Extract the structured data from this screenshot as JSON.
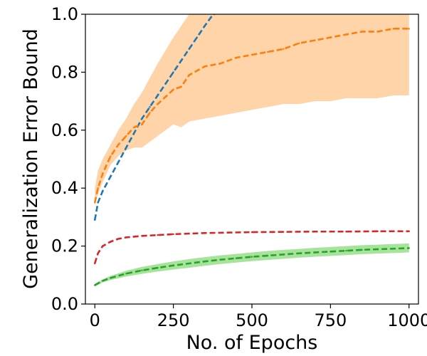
{
  "chart_data": {
    "type": "line",
    "title": "",
    "xlabel": "No. of Epochs",
    "ylabel": "Generalization Error Bound",
    "xlim": [
      -30,
      1030
    ],
    "ylim": [
      0,
      1.0
    ],
    "xticks": [
      "0",
      "250",
      "500",
      "750",
      "1000"
    ],
    "yticks": [
      "0.0",
      "0.2",
      "0.4",
      "0.6",
      "0.8",
      "1.0"
    ],
    "grid": false,
    "legend": "none",
    "series": [
      {
        "color": "#1f77b4",
        "style": "dashed",
        "x": [
          0,
          10,
          25,
          50,
          75,
          100,
          125,
          150,
          175,
          200,
          225,
          250,
          275,
          300,
          325,
          350,
          370,
          380
        ],
        "y": [
          0.29,
          0.35,
          0.39,
          0.44,
          0.49,
          0.54,
          0.59,
          0.64,
          0.68,
          0.72,
          0.76,
          0.8,
          0.84,
          0.88,
          0.92,
          0.96,
          0.99,
          1.0
        ]
      },
      {
        "color": "#ff7f0e",
        "style": "dashed",
        "band_color": "#ffcc99",
        "x": [
          0,
          10,
          25,
          50,
          75,
          100,
          125,
          150,
          175,
          200,
          250,
          275,
          300,
          350,
          400,
          450,
          500,
          550,
          600,
          650,
          700,
          750,
          800,
          850,
          900,
          950,
          1000
        ],
        "y": [
          0.35,
          0.4,
          0.45,
          0.51,
          0.55,
          0.58,
          0.61,
          0.62,
          0.66,
          0.69,
          0.74,
          0.75,
          0.79,
          0.82,
          0.83,
          0.85,
          0.86,
          0.87,
          0.88,
          0.9,
          0.91,
          0.92,
          0.93,
          0.94,
          0.94,
          0.95,
          0.95
        ],
        "upper": [
          0.4,
          0.46,
          0.5,
          0.55,
          0.6,
          0.64,
          0.69,
          0.73,
          0.78,
          0.83,
          0.92,
          0.96,
          1.0,
          1.0,
          1.0,
          1.0,
          1.0,
          1.0,
          1.0,
          1.0,
          1.0,
          1.0,
          1.0,
          1.0,
          1.0,
          1.0,
          1.0
        ],
        "lower": [
          0.34,
          0.38,
          0.42,
          0.48,
          0.51,
          0.53,
          0.54,
          0.54,
          0.56,
          0.58,
          0.62,
          0.61,
          0.63,
          0.64,
          0.65,
          0.66,
          0.67,
          0.68,
          0.69,
          0.69,
          0.7,
          0.7,
          0.71,
          0.71,
          0.71,
          0.72,
          0.72
        ]
      },
      {
        "color": "#2ca02c",
        "style": "dashed",
        "band_color": "#98df8a",
        "x": [
          0,
          25,
          50,
          100,
          150,
          200,
          250,
          300,
          350,
          400,
          450,
          500,
          550,
          600,
          650,
          700,
          750,
          800,
          850,
          900,
          950,
          1000
        ],
        "y": [
          0.065,
          0.08,
          0.09,
          0.105,
          0.116,
          0.125,
          0.133,
          0.14,
          0.147,
          0.153,
          0.158,
          0.163,
          0.167,
          0.171,
          0.175,
          0.178,
          0.181,
          0.184,
          0.187,
          0.189,
          0.191,
          0.193
        ],
        "upper": [
          0.07,
          0.085,
          0.097,
          0.115,
          0.128,
          0.138,
          0.147,
          0.155,
          0.162,
          0.168,
          0.173,
          0.178,
          0.183,
          0.187,
          0.19,
          0.194,
          0.197,
          0.2,
          0.203,
          0.205,
          0.207,
          0.209
        ],
        "lower": [
          0.06,
          0.075,
          0.083,
          0.095,
          0.104,
          0.112,
          0.119,
          0.125,
          0.132,
          0.138,
          0.143,
          0.148,
          0.152,
          0.156,
          0.16,
          0.163,
          0.166,
          0.169,
          0.172,
          0.174,
          0.176,
          0.178
        ]
      },
      {
        "color": "#d62728",
        "style": "dashed",
        "x": [
          0,
          10,
          25,
          50,
          75,
          100,
          150,
          200,
          250,
          300,
          350,
          400,
          500,
          600,
          700,
          800,
          900,
          1000
        ],
        "y": [
          0.14,
          0.175,
          0.2,
          0.215,
          0.225,
          0.23,
          0.235,
          0.238,
          0.241,
          0.243,
          0.245,
          0.246,
          0.248,
          0.249,
          0.25,
          0.25,
          0.251,
          0.251
        ]
      }
    ]
  }
}
